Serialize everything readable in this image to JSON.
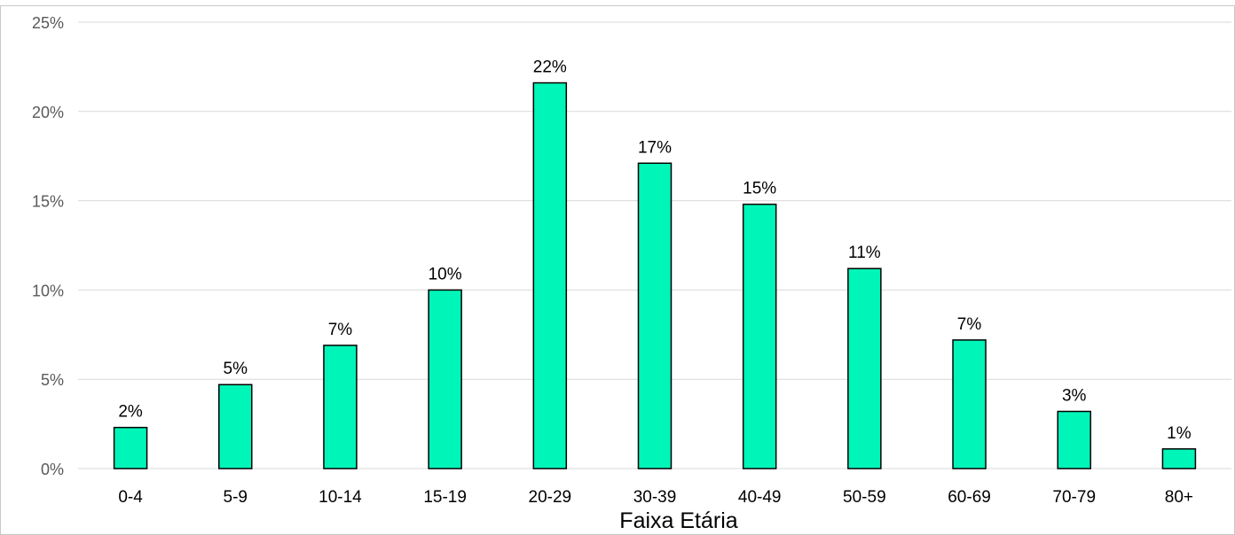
{
  "chart_data": {
    "type": "bar",
    "categories": [
      "0-4",
      "5-9",
      "10-14",
      "15-19",
      "20-29",
      "30-39",
      "40-49",
      "50-59",
      "60-69",
      "70-79",
      "80+"
    ],
    "values": [
      2.3,
      4.7,
      6.9,
      10.0,
      21.6,
      17.1,
      14.8,
      11.2,
      7.2,
      3.2,
      1.1
    ],
    "data_labels": [
      "2%",
      "5%",
      "7%",
      "10%",
      "22%",
      "17%",
      "15%",
      "11%",
      "7%",
      "3%",
      "1%"
    ],
    "ylim": [
      0,
      25
    ],
    "yticks": [
      0,
      5,
      10,
      15,
      20,
      25
    ],
    "ytick_labels": [
      "0%",
      "5%",
      "10%",
      "15%",
      "20%",
      "25%"
    ],
    "xlabel": "Faixa Etária",
    "ylabel": "",
    "grid": true,
    "legend": "none",
    "bar_color": "#00f5b8",
    "bar_edge_color": "#000000"
  }
}
